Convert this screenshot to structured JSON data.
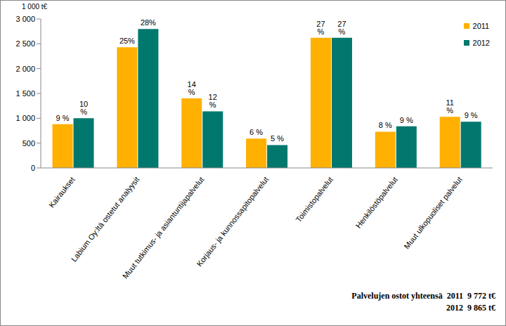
{
  "chart_data": {
    "type": "bar",
    "unit_label": "1 000 t€",
    "categories": [
      "Kairaukset",
      "Labium Oy:ltä ostetut analyysit",
      "Muut tutkimus- ja asiantuntijapalvelut",
      "Korjaus- ja kunnossapitopalvelut",
      "Toimistopalvelut",
      "Henkilöstöpalvelut",
      "Muut ulkopuoliset palvelut"
    ],
    "series": [
      {
        "name": "2011",
        "color": "#ffb000",
        "values": [
          880,
          2430,
          1400,
          590,
          2620,
          730,
          1030
        ],
        "share_labels": [
          "9 %",
          "25%",
          "14 %",
          "6 %",
          "27 %",
          "8 %",
          "11 %"
        ]
      },
      {
        "name": "2012",
        "color": "#00786e",
        "values": [
          1000,
          2800,
          1140,
          460,
          2620,
          840,
          930
        ],
        "share_labels": [
          "10 %",
          "28%",
          "12 %",
          "5 %",
          "27 %",
          "9 %",
          "9 %"
        ]
      }
    ],
    "ylim": [
      0,
      3000
    ],
    "yticks": [
      0,
      500,
      {
        "value": 1000,
        "label": "1 000"
      },
      {
        "value": 1500,
        "label": "1 500"
      },
      {
        "value": 2000,
        "label": "2 000"
      },
      {
        "value": 2500,
        "label": "2 500"
      },
      {
        "value": 3000,
        "label": "3 000"
      }
    ],
    "grid": false,
    "legend": "top-right",
    "footer": [
      "Palvelujen ostot yhteensä  2011  9 772 t€",
      "2012  9 865 t€"
    ]
  }
}
